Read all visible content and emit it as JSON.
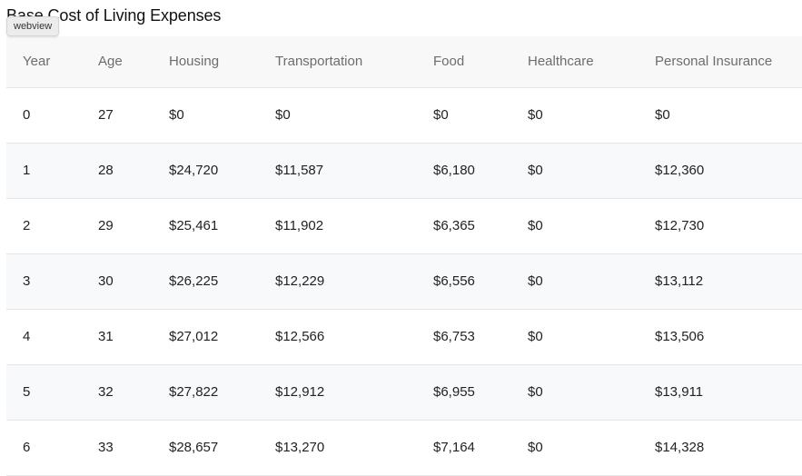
{
  "page": {
    "title": "Base Cost of Living Expenses",
    "badge": "webview"
  },
  "table": {
    "headers": [
      "Year",
      "Age",
      "Housing",
      "Transportation",
      "Food",
      "Healthcare",
      "Personal Insurance"
    ],
    "rows": [
      [
        "0",
        "27",
        "$0",
        "$0",
        "$0",
        "$0",
        "$0"
      ],
      [
        "1",
        "28",
        "$24,720",
        "$11,587",
        "$6,180",
        "$0",
        "$12,360"
      ],
      [
        "2",
        "29",
        "$25,461",
        "$11,902",
        "$6,365",
        "$0",
        "$12,730"
      ],
      [
        "3",
        "30",
        "$26,225",
        "$12,229",
        "$6,556",
        "$0",
        "$13,112"
      ],
      [
        "4",
        "31",
        "$27,012",
        "$12,566",
        "$6,753",
        "$0",
        "$13,506"
      ],
      [
        "5",
        "32",
        "$27,822",
        "$12,912",
        "$6,955",
        "$0",
        "$13,911"
      ],
      [
        "6",
        "33",
        "$28,657",
        "$13,270",
        "$7,164",
        "$0",
        "$14,328"
      ]
    ]
  },
  "colors": {
    "header_bg": "#f8f8f8",
    "stripe_bg": "#f8f9fb",
    "border": "#e6e6e6",
    "header_text": "#6d6d6d",
    "cell_text": "#222222"
  }
}
